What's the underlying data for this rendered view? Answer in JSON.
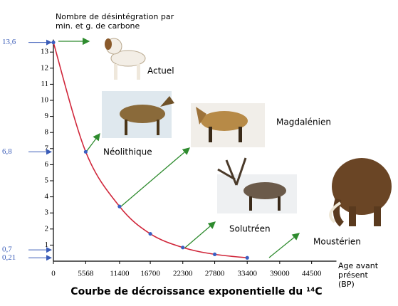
{
  "chart_data": {
    "type": "line",
    "title": "Courbe de décroissance exponentielle du ¹⁴C",
    "y_label": "Nombre de désintégration par min. et g. de carbone",
    "x_label": "Age avant présent (BP)",
    "x": [
      0,
      5568,
      11400,
      16700,
      22300,
      27800,
      33400
    ],
    "values": [
      13.6,
      6.8,
      3.4,
      1.7,
      0.85,
      0.425,
      0.21
    ],
    "color": "#d0263a",
    "point_color": "#3a5fc2",
    "xlim": [
      0,
      50000
    ],
    "xticks": [
      0,
      5568,
      11400,
      16700,
      22300,
      27800,
      33400,
      39000,
      44500
    ],
    "ylim": [
      0,
      14
    ],
    "yticks": [
      1,
      2,
      3,
      4,
      5,
      6,
      7,
      8,
      9,
      10,
      11,
      12,
      13
    ],
    "marker_ticks": [
      {
        "value": 13.6,
        "label": "13,6"
      },
      {
        "value": 6.8,
        "label": "6,8"
      },
      {
        "value": 0.7,
        "label": "0,7"
      },
      {
        "value": 0.21,
        "label": "0,21"
      }
    ],
    "period_labels": [
      "Actuel",
      "Néolithique",
      "Magdalénien",
      "Solutréen",
      "Moustérien"
    ]
  }
}
